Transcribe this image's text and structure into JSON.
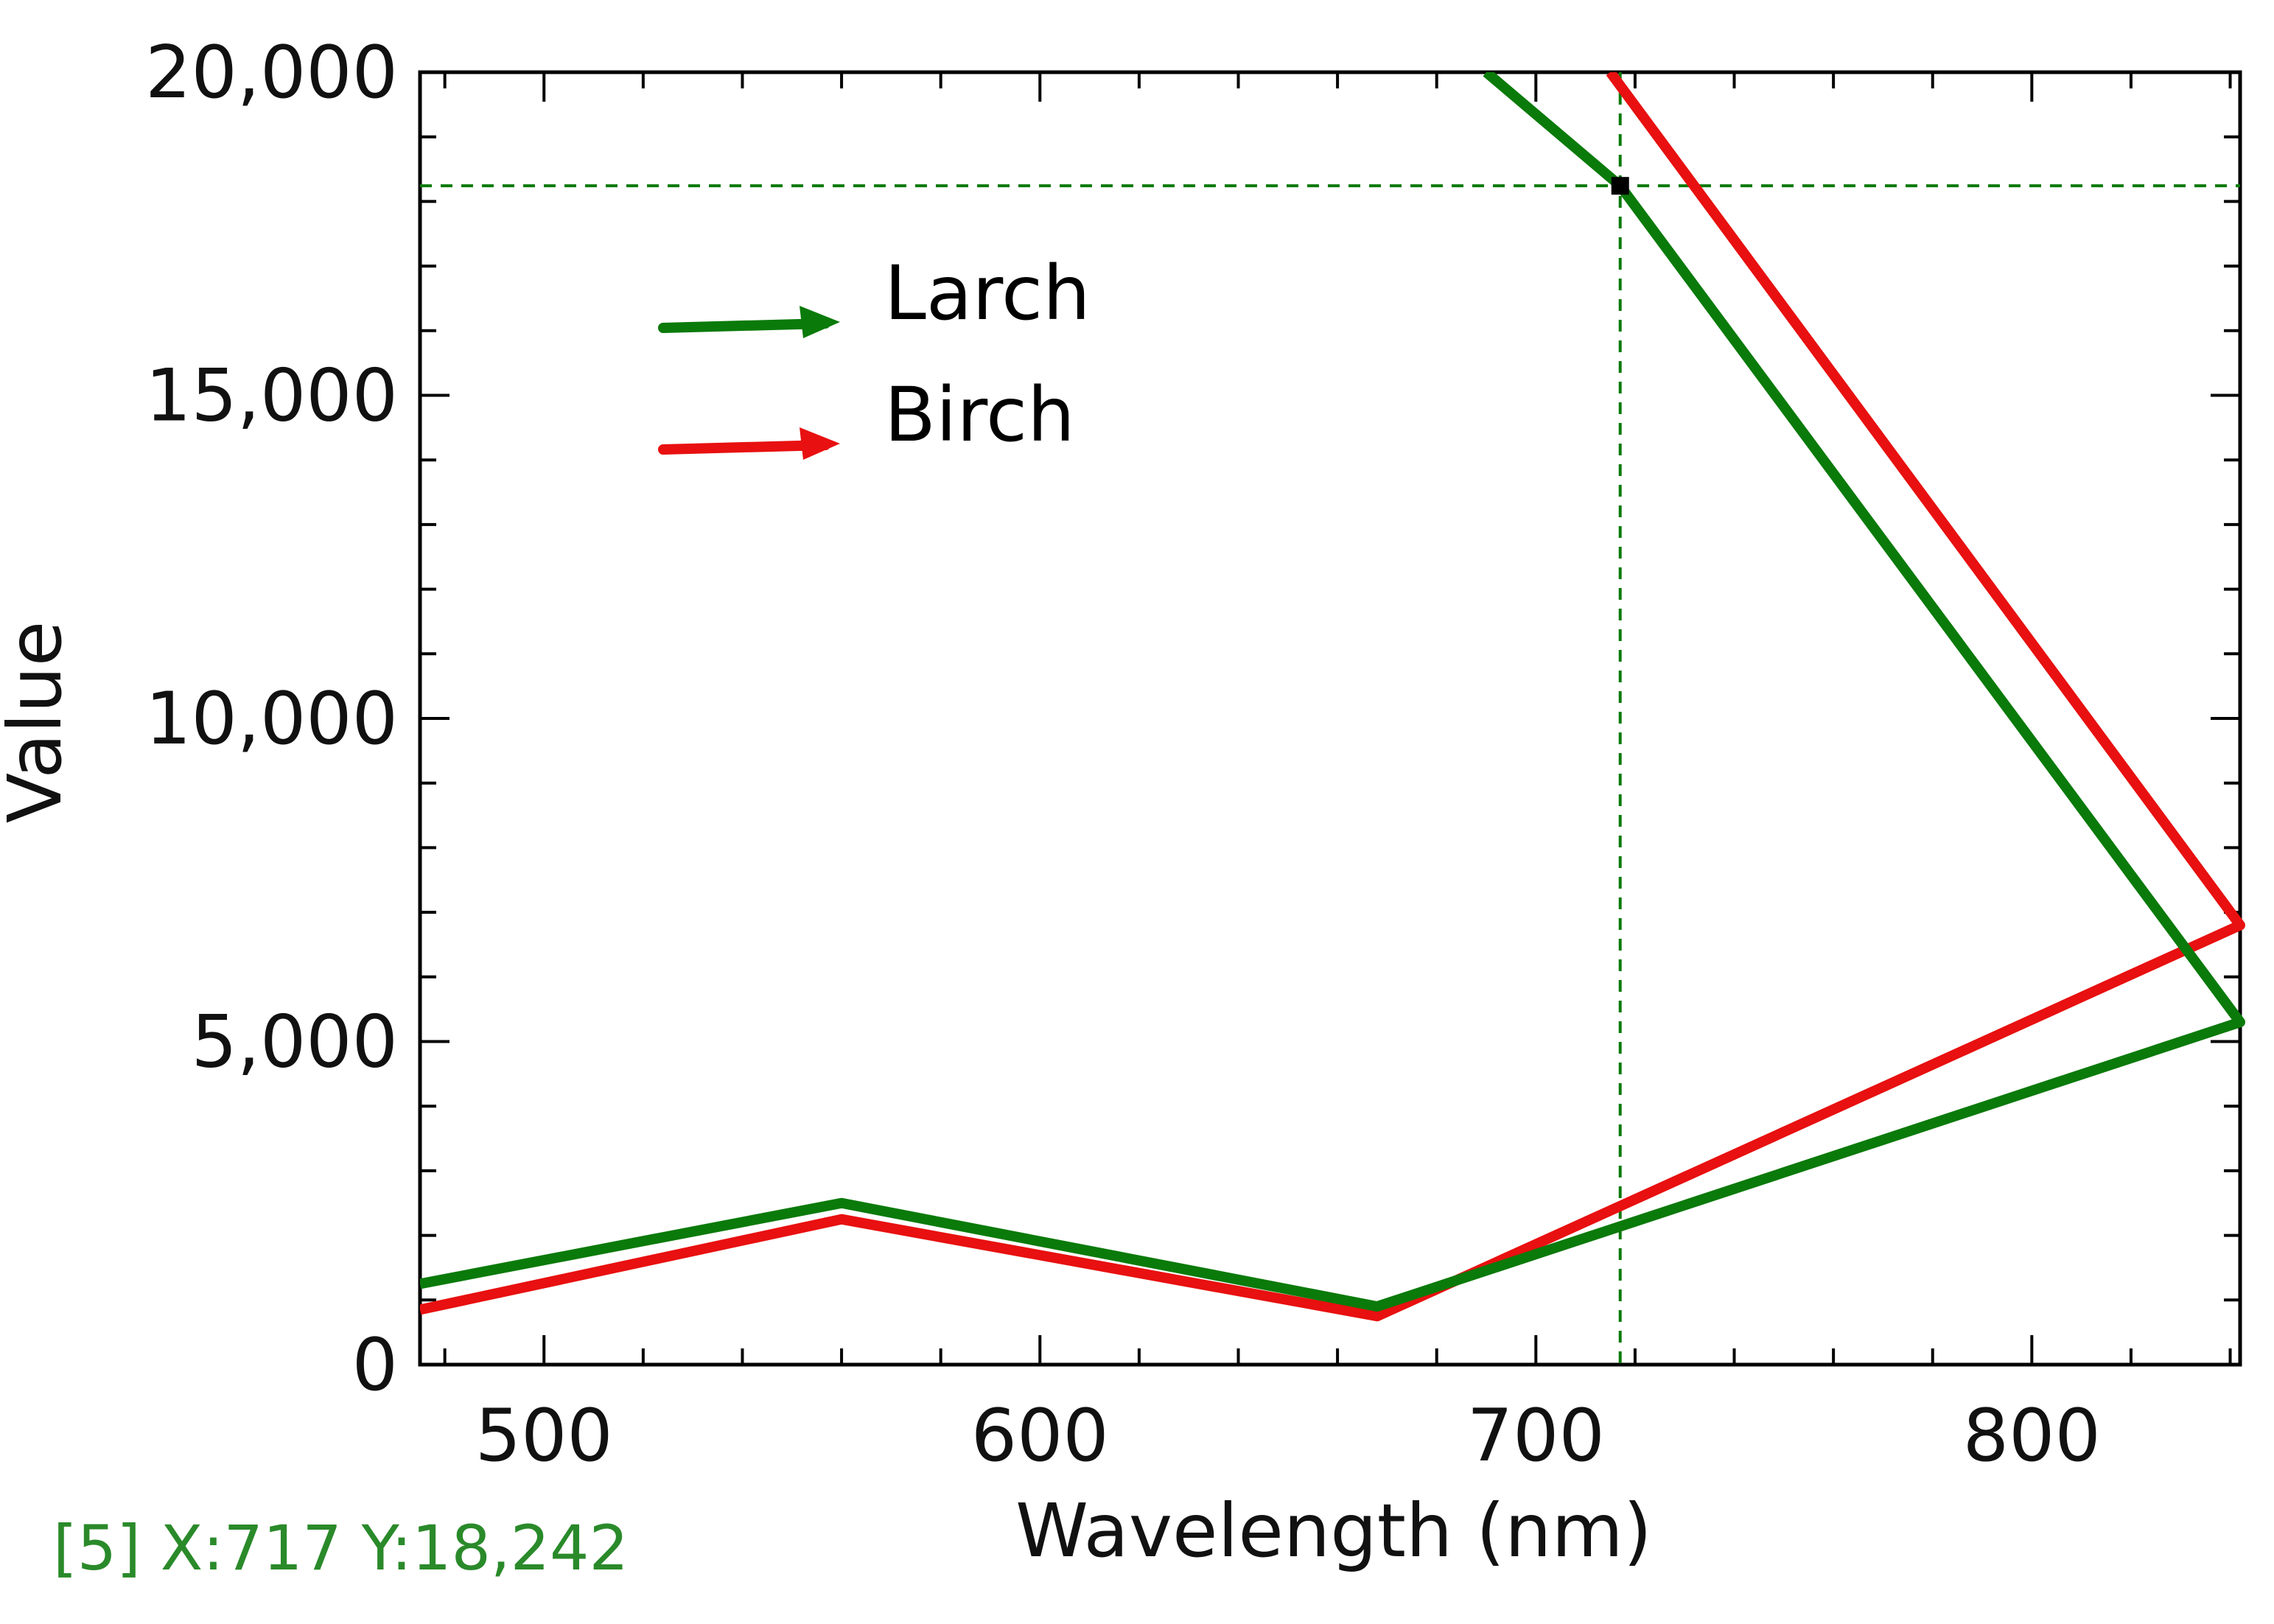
{
  "chart_data": {
    "type": "line",
    "title": "",
    "xlabel": "Wavelength (nm)",
    "ylabel": "Value",
    "xlim": [
      475,
      842
    ],
    "ylim": [
      0,
      20000
    ],
    "x_ticks": [
      500,
      600,
      700,
      800
    ],
    "x_tick_labels": [
      "500",
      "600",
      "700",
      "800"
    ],
    "y_ticks": [
      0,
      5000,
      10000,
      15000,
      20000
    ],
    "y_tick_labels": [
      "0",
      "5,000",
      "10,000",
      "15,000",
      "20,000"
    ],
    "grid": false,
    "legend_position": "top-left",
    "series": [
      {
        "name": "Larch",
        "color": "#0a7a0a",
        "x": [
          475,
          560,
          668,
          842,
          717,
          690
        ],
        "y": [
          1250,
          2500,
          900,
          5300,
          18242,
          20000
        ]
      },
      {
        "name": "Birch",
        "color": "#e81010",
        "x": [
          475,
          560,
          668,
          842,
          715
        ],
        "y": [
          850,
          2250,
          750,
          6800,
          20000
        ]
      }
    ],
    "cursor": {
      "x": 717,
      "y": 18242,
      "color": "#0a7a0a"
    },
    "readout": "[5] X:717 Y:18,242",
    "readout_color": "#2a8a2a"
  }
}
